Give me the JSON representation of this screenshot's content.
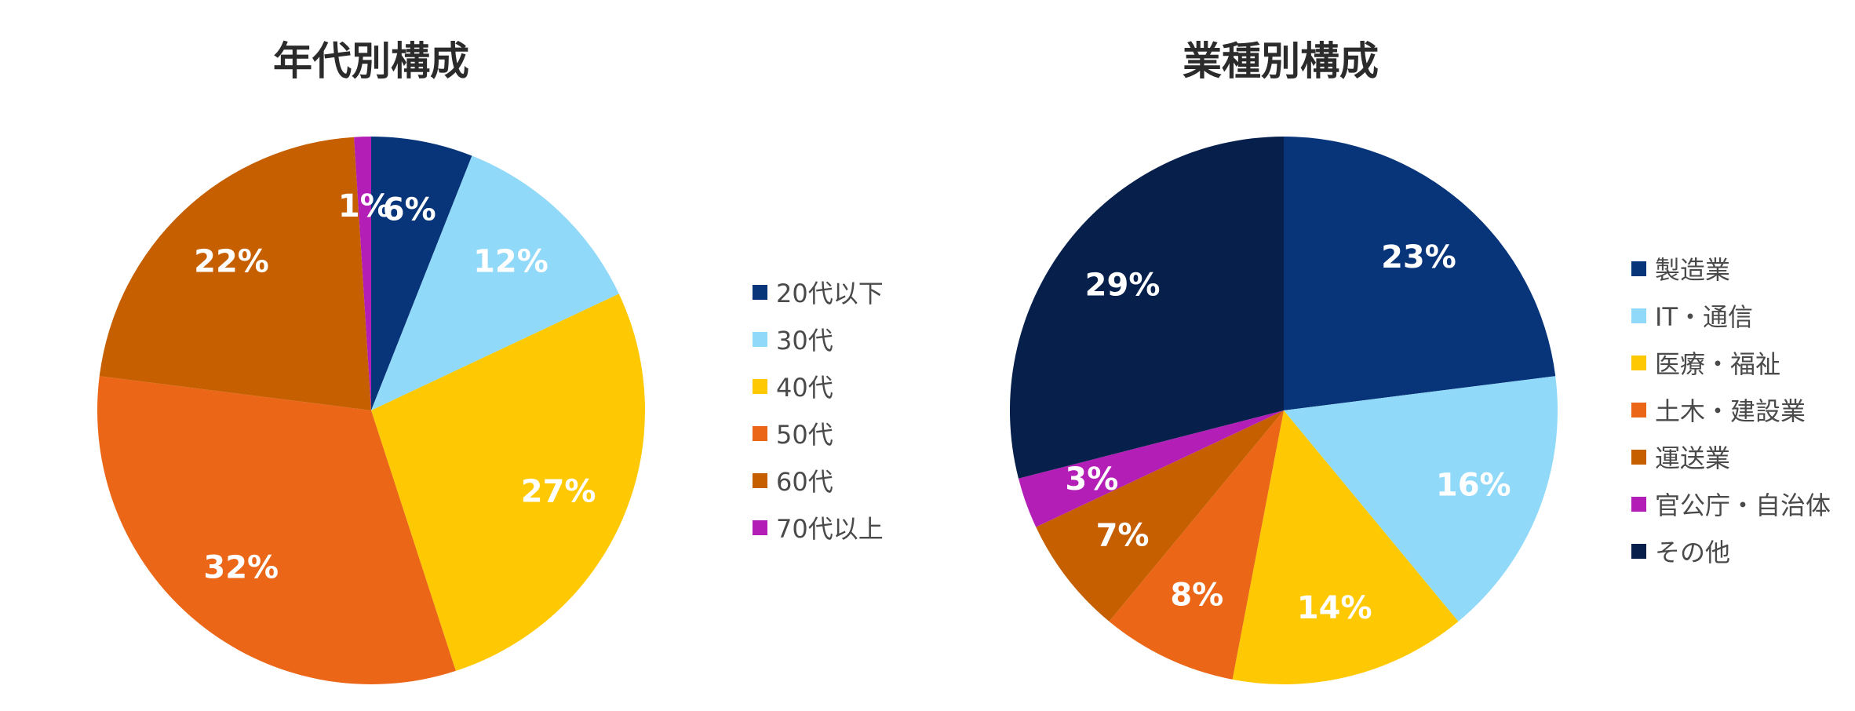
{
  "chart_data": [
    {
      "type": "pie",
      "title": "年代別構成",
      "categories": [
        "20代以下",
        "30代",
        "40代",
        "50代",
        "60代",
        "70代以上"
      ],
      "values": [
        6,
        12,
        27,
        32,
        22,
        1
      ],
      "labels": [
        "6%",
        "12%",
        "27%",
        "32%",
        "22%",
        "1%"
      ],
      "colors": [
        "#08357a",
        "#91d9f8",
        "#fec903",
        "#eb6617",
        "#c55f00",
        "#b31fb6"
      ],
      "legend_position": "right"
    },
    {
      "type": "pie",
      "title": "業種別構成",
      "categories": [
        "製造業",
        "IT・通信",
        "医療・福祉",
        "土木・建設業",
        "運送業",
        "官公庁・自治体",
        "その他"
      ],
      "values": [
        23,
        16,
        14,
        8,
        7,
        3,
        29
      ],
      "labels": [
        "23%",
        "16%",
        "14%",
        "8%",
        "7%",
        "3%",
        "29%"
      ],
      "colors": [
        "#08357a",
        "#91d9f8",
        "#fec903",
        "#eb6617",
        "#c55f00",
        "#b31fb6",
        "#06204b"
      ],
      "legend_position": "right"
    }
  ]
}
